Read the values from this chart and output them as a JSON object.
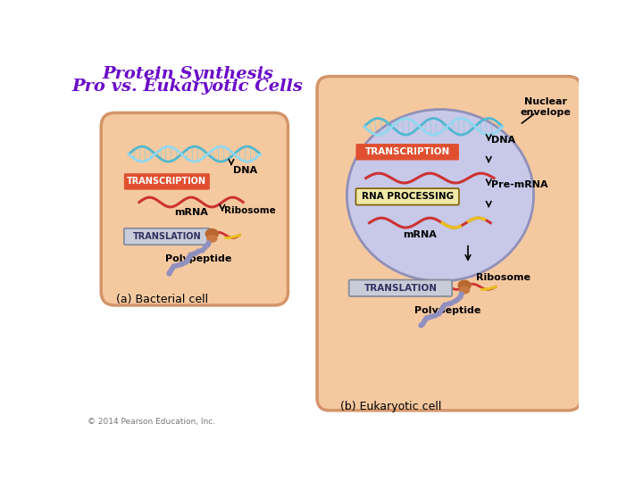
{
  "title_line1": "Protein Synthesis",
  "title_line2": "Pro vs. Eukaryotic Cells",
  "title_color": "#6B0AC9",
  "bg_color": "#FFFFFF",
  "bact_cell_fill": "#F5C9A0",
  "bact_cell_border": "#D4956A",
  "euk_cell_fill": "#F5C9A0",
  "euk_cell_border": "#D4956A",
  "nucleus_fill": "#C8C8E8",
  "nucleus_border": "#9090B8",
  "label_a": "(a) Bacterial cell",
  "label_b": "(b) Eukaryotic cell",
  "copyright": "© 2014 Pearson Education, Inc.",
  "transcription_box_color": "#E05030",
  "translation_box_fill": "#C8CCD8",
  "translation_box_border": "#808898",
  "rna_processing_box_fill": "#E8D890",
  "rna_processing_box_border": "#808040",
  "nuclear_envelope_label": "Nuclear\nenvelope",
  "dna_label": "DNA",
  "mrna_label": "mRNA",
  "premrna_label": "Pre-mRNA",
  "ribosome_label": "Ribosome",
  "polypeptide_label": "Polypeptide",
  "transcription_label": "TRANSCRIPTION",
  "translation_label": "TRANSLATION",
  "rna_processing_label": "RNA PROCESSING"
}
